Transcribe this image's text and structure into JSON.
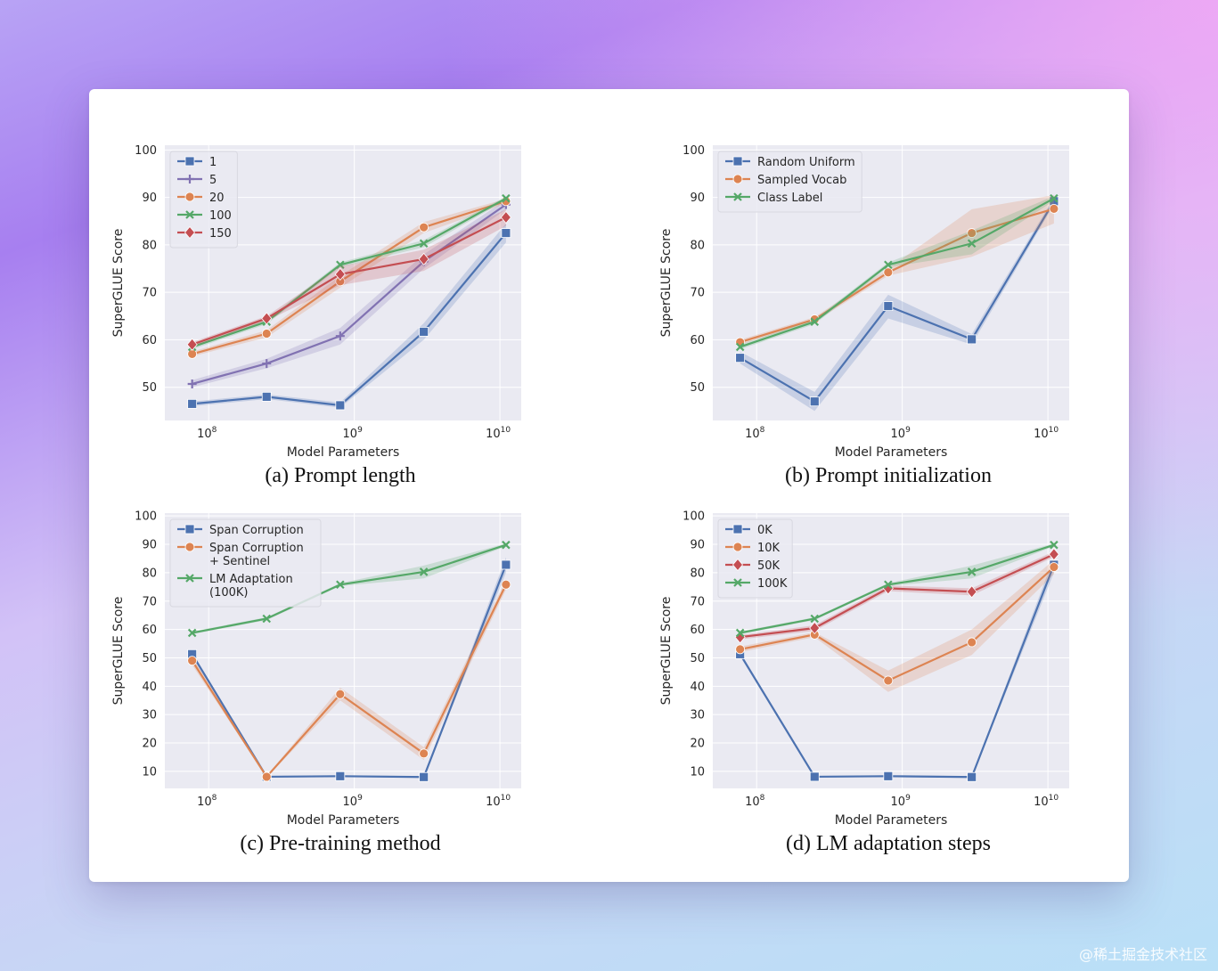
{
  "watermark": "@稀土掘金技术社区",
  "chart_data": [
    {
      "type": "line",
      "caption": "(a) Prompt length",
      "xlabel": "Model Parameters",
      "ylabel": "SuperGLUE Score",
      "xscale": "log",
      "xticks": [
        {
          "base": "10",
          "exp": "8",
          "value": 100000000
        },
        {
          "base": "10",
          "exp": "9",
          "value": 1000000000
        },
        {
          "base": "10",
          "exp": "10",
          "value": 10000000000
        }
      ],
      "ylim": [
        43,
        101
      ],
      "yticks": [
        50,
        60,
        70,
        80,
        90,
        100
      ],
      "x": [
        77000000,
        250000000,
        800000000,
        3000000000,
        11000000000
      ],
      "legend_position": "top-left",
      "series": [
        {
          "name": "1",
          "color": "#4c72b0",
          "marker": "square",
          "values": [
            46.5,
            48,
            46.2,
            61.7,
            82.5
          ],
          "band": [
            [
              46,
              47
            ],
            [
              47.5,
              48.5
            ],
            [
              45.7,
              46.8
            ],
            [
              60,
              63.5
            ],
            [
              80.5,
              84.5
            ]
          ]
        },
        {
          "name": "5",
          "color": "#8172b2",
          "marker": "plus",
          "values": [
            50.7,
            55,
            60.8,
            76.5,
            88.5
          ],
          "band": [
            [
              50,
              51.5
            ],
            [
              54,
              56
            ],
            [
              59,
              62.5
            ],
            [
              75,
              78
            ],
            [
              87.5,
              89.5
            ]
          ]
        },
        {
          "name": "20",
          "color": "#dd8452",
          "marker": "circle",
          "values": [
            57,
            61.3,
            72.3,
            83.7,
            89.2
          ],
          "band": [
            [
              56.5,
              57.5
            ],
            [
              60.5,
              62
            ],
            [
              71,
              73.5
            ],
            [
              82.5,
              84.8
            ],
            [
              88.7,
              89.7
            ]
          ]
        },
        {
          "name": "100",
          "color": "#55a868",
          "marker": "x",
          "values": [
            58.5,
            63.8,
            75.8,
            80.3,
            89.8
          ],
          "band": [
            [
              58,
              59
            ],
            [
              63.3,
              64.3
            ],
            [
              75.3,
              76.3
            ],
            [
              79.5,
              81
            ],
            [
              89.4,
              90.2
            ]
          ]
        },
        {
          "name": "150",
          "color": "#c44e52",
          "marker": "diamond",
          "values": [
            59,
            64.5,
            73.8,
            77,
            85.8
          ],
          "band": [
            [
              58.5,
              59.5
            ],
            [
              64,
              65
            ],
            [
              71.5,
              75.5
            ],
            [
              74.5,
              79
            ],
            [
              84,
              87.5
            ]
          ]
        }
      ]
    },
    {
      "type": "line",
      "caption": "(b) Prompt initialization",
      "xlabel": "Model Parameters",
      "ylabel": "SuperGLUE Score",
      "xscale": "log",
      "xticks": [
        {
          "base": "10",
          "exp": "8",
          "value": 100000000
        },
        {
          "base": "10",
          "exp": "9",
          "value": 1000000000
        },
        {
          "base": "10",
          "exp": "10",
          "value": 10000000000
        }
      ],
      "ylim": [
        43,
        101
      ],
      "yticks": [
        50,
        60,
        70,
        80,
        90,
        100
      ],
      "x": [
        77000000,
        250000000,
        800000000,
        3000000000,
        11000000000
      ],
      "legend_position": "top-left",
      "series": [
        {
          "name": "Random Uniform",
          "color": "#4c72b0",
          "marker": "square",
          "values": [
            56.2,
            47,
            67.1,
            60.1,
            89.2
          ],
          "band": [
            [
              55,
              57.5
            ],
            [
              45,
              49
            ],
            [
              64.5,
              69.5
            ],
            [
              59,
              61.2
            ],
            [
              88.5,
              90
            ]
          ]
        },
        {
          "name": "Sampled Vocab",
          "color": "#dd8452",
          "marker": "circle",
          "values": [
            59.5,
            64.3,
            74.2,
            82.5,
            87.6
          ],
          "band": [
            [
              59,
              60
            ],
            [
              63.8,
              64.8
            ],
            [
              73.5,
              75
            ],
            [
              77.5,
              87.5
            ],
            [
              84.5,
              90.5
            ]
          ]
        },
        {
          "name": "Class Label",
          "color": "#55a868",
          "marker": "x",
          "values": [
            58.5,
            63.8,
            75.8,
            80.3,
            89.8
          ],
          "band": [
            [
              58,
              59
            ],
            [
              63.3,
              64.3
            ],
            [
              75.3,
              76.3
            ],
            [
              78,
              83
            ],
            [
              89.3,
              90.3
            ]
          ]
        }
      ]
    },
    {
      "type": "line",
      "caption": "(c) Pre-training method",
      "xlabel": "Model Parameters",
      "ylabel": "SuperGLUE Score",
      "xscale": "log",
      "xticks": [
        {
          "base": "10",
          "exp": "8",
          "value": 100000000
        },
        {
          "base": "10",
          "exp": "9",
          "value": 1000000000
        },
        {
          "base": "10",
          "exp": "10",
          "value": 10000000000
        }
      ],
      "ylim": [
        4,
        101
      ],
      "yticks": [
        10,
        20,
        30,
        40,
        50,
        60,
        70,
        80,
        90,
        100
      ],
      "x": [
        77000000,
        250000000,
        800000000,
        3000000000,
        11000000000
      ],
      "legend_position": "top-left",
      "series": [
        {
          "name": "Span Corruption",
          "color": "#4c72b0",
          "marker": "square",
          "values": [
            51.3,
            8.1,
            8.3,
            8,
            82.8
          ],
          "band": [
            [
              50.5,
              52
            ],
            [
              7.8,
              8.4
            ],
            [
              8,
              8.6
            ],
            [
              7.7,
              8.3
            ],
            [
              80,
              85.5
            ]
          ]
        },
        {
          "name": "Span Corruption\n+ Sentinel",
          "color": "#dd8452",
          "marker": "circle",
          "values": [
            49,
            8.1,
            37.2,
            16.3,
            75.8
          ],
          "band": [
            [
              47.5,
              50.5
            ],
            [
              7.8,
              8.4
            ],
            [
              35,
              39.5
            ],
            [
              14,
              18.5
            ],
            [
              74,
              77.5
            ]
          ]
        },
        {
          "name": "LM Adaptation\n(100K)",
          "color": "#55a868",
          "marker": "x",
          "values": [
            58.8,
            63.8,
            75.8,
            80.3,
            89.8
          ],
          "band": [
            [
              58.3,
              59.3
            ],
            [
              63.3,
              64.3
            ],
            [
              75.3,
              76.3
            ],
            [
              78,
              82.5
            ],
            [
              89.3,
              90.3
            ]
          ]
        }
      ]
    },
    {
      "type": "line",
      "caption": "(d) LM adaptation steps",
      "xlabel": "Model Parameters",
      "ylabel": "SuperGLUE Score",
      "xscale": "log",
      "xticks": [
        {
          "base": "10",
          "exp": "8",
          "value": 100000000
        },
        {
          "base": "10",
          "exp": "9",
          "value": 1000000000
        },
        {
          "base": "10",
          "exp": "10",
          "value": 10000000000
        }
      ],
      "ylim": [
        4,
        101
      ],
      "yticks": [
        10,
        20,
        30,
        40,
        50,
        60,
        70,
        80,
        90,
        100
      ],
      "x": [
        77000000,
        250000000,
        800000000,
        3000000000,
        11000000000
      ],
      "legend_position": "top-left",
      "series": [
        {
          "name": "0K",
          "color": "#4c72b0",
          "marker": "square",
          "values": [
            51.3,
            8.1,
            8.3,
            8,
            82.8
          ],
          "band": [
            [
              50.5,
              52
            ],
            [
              7.8,
              8.4
            ],
            [
              8,
              8.6
            ],
            [
              7.7,
              8.3
            ],
            [
              80,
              85.5
            ]
          ]
        },
        {
          "name": "10K",
          "color": "#dd8452",
          "marker": "circle",
          "values": [
            53,
            58.2,
            42,
            55.5,
            82
          ],
          "band": [
            [
              52,
              54
            ],
            [
              57.3,
              59
            ],
            [
              38,
              45.5
            ],
            [
              51,
              60
            ],
            [
              79.5,
              84.5
            ]
          ]
        },
        {
          "name": "50K",
          "color": "#c44e52",
          "marker": "diamond",
          "values": [
            57.3,
            60.5,
            74.5,
            73.3,
            86.5
          ],
          "band": [
            [
              56.5,
              58
            ],
            [
              59.5,
              61.5
            ],
            [
              73.5,
              75.5
            ],
            [
              72,
              74.5
            ],
            [
              85.5,
              87.5
            ]
          ]
        },
        {
          "name": "100K",
          "color": "#55a868",
          "marker": "x",
          "values": [
            58.8,
            63.8,
            75.8,
            80.3,
            89.8
          ],
          "band": [
            [
              58.3,
              59.3
            ],
            [
              63.3,
              64.3
            ],
            [
              75.3,
              76.3
            ],
            [
              78,
              82.5
            ],
            [
              89.3,
              90.3
            ]
          ]
        }
      ]
    }
  ]
}
